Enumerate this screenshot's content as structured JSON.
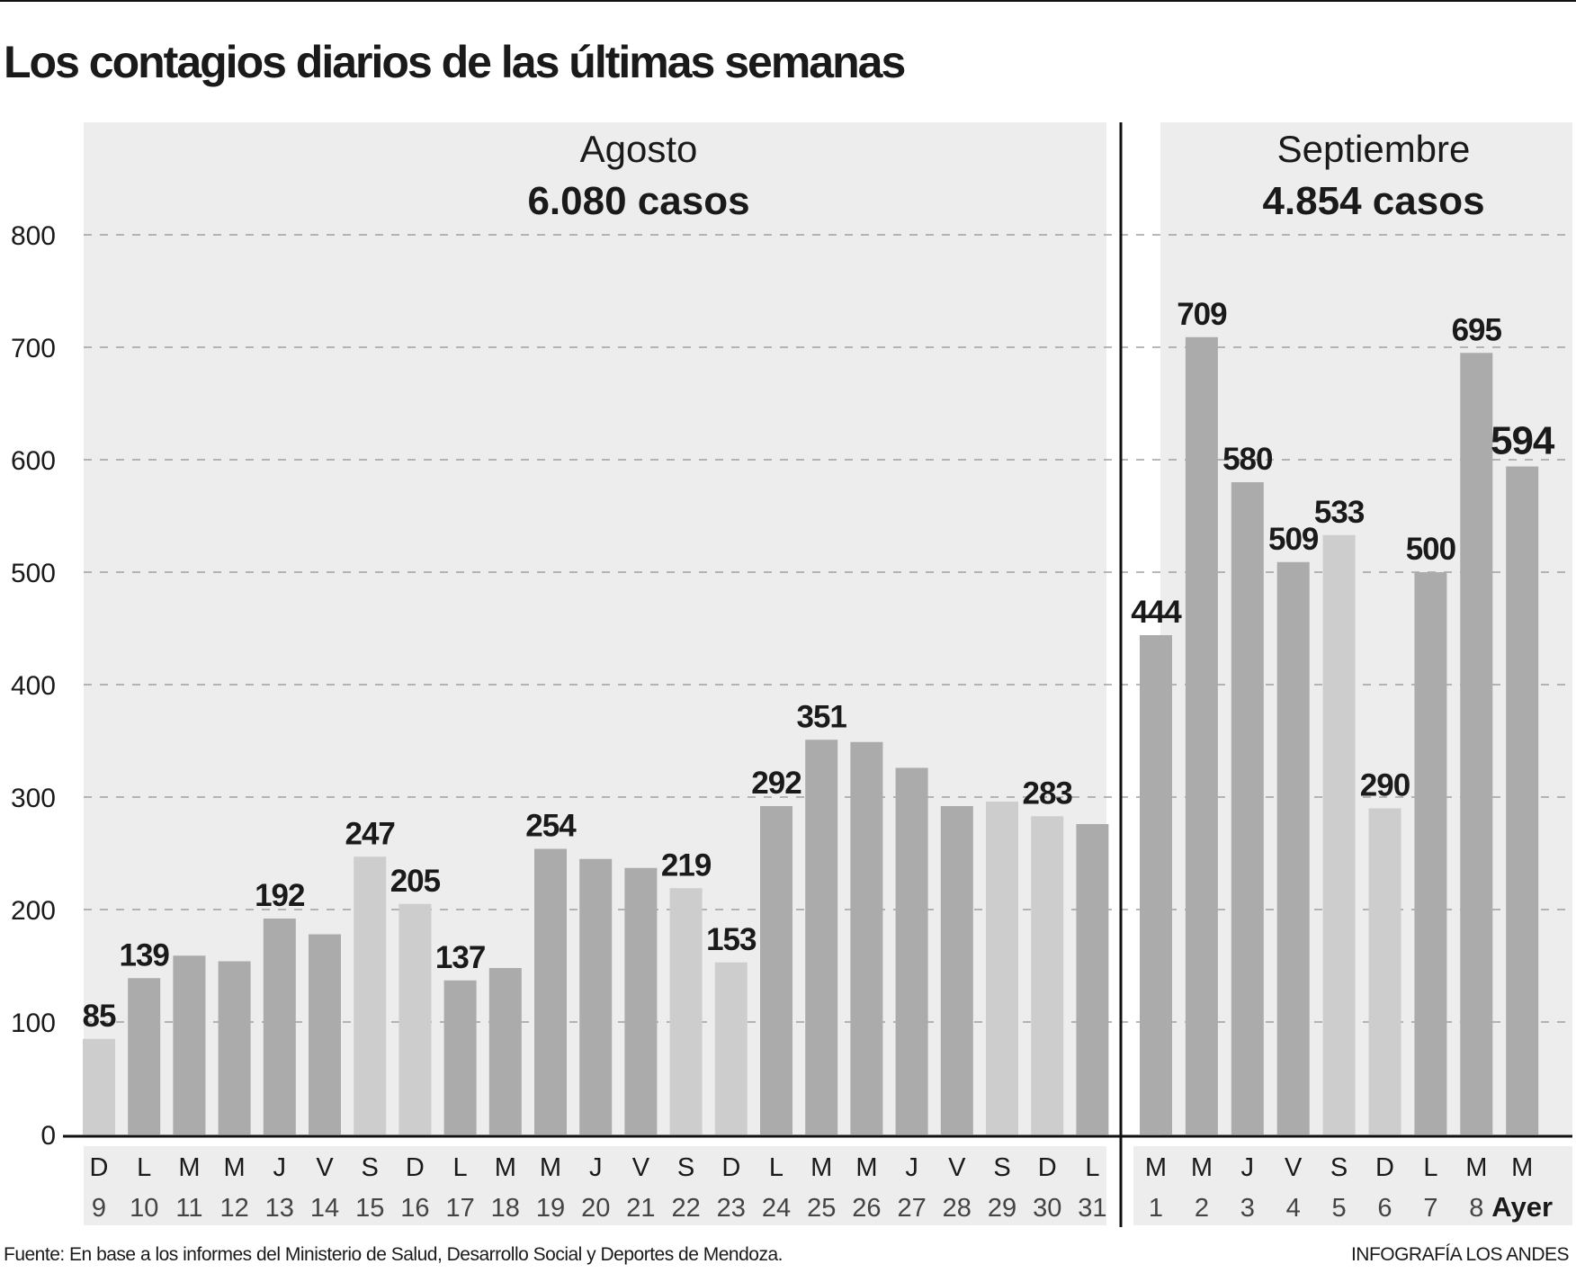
{
  "title": "Los contagios diarios de las últimas semanas",
  "source": "Fuente: En base a los informes del Ministerio de Salud, Desarrollo Social y Deportes de Mendoza.",
  "credit": "INFOGRAFÍA LOS ANDES",
  "colors": {
    "background_panel": "#ededed",
    "weekday_bar": "#ababab",
    "weekend_bar": "#cdcdcd",
    "text": "#1a1a1a",
    "gridline": "#a0a0a0"
  },
  "chart_data": {
    "type": "bar",
    "title": "Los contagios diarios de las últimas semanas",
    "xlabel": "",
    "ylabel": "",
    "ylim": [
      0,
      800
    ],
    "yticks": [
      "0",
      "100",
      "200",
      "300",
      "400",
      "500",
      "600",
      "700",
      "800"
    ],
    "grid": true,
    "panels": [
      {
        "month": "Agosto",
        "total": "6.080 casos",
        "bars": [
          {
            "day": "D",
            "date": "9",
            "value": 85,
            "label": "85",
            "weekend": true
          },
          {
            "day": "L",
            "date": "10",
            "value": 139,
            "label": "139",
            "weekend": false
          },
          {
            "day": "M",
            "date": "11",
            "value": 159,
            "label": null,
            "weekend": false
          },
          {
            "day": "M",
            "date": "12",
            "value": 154,
            "label": null,
            "weekend": false
          },
          {
            "day": "J",
            "date": "13",
            "value": 192,
            "label": "192",
            "weekend": false
          },
          {
            "day": "V",
            "date": "14",
            "value": 178,
            "label": null,
            "weekend": false
          },
          {
            "day": "S",
            "date": "15",
            "value": 247,
            "label": "247",
            "weekend": true
          },
          {
            "day": "D",
            "date": "16",
            "value": 205,
            "label": "205",
            "weekend": true
          },
          {
            "day": "L",
            "date": "17",
            "value": 137,
            "label": "137",
            "weekend": false
          },
          {
            "day": "M",
            "date": "18",
            "value": 148,
            "label": null,
            "weekend": false
          },
          {
            "day": "M",
            "date": "19",
            "value": 254,
            "label": "254",
            "weekend": false
          },
          {
            "day": "J",
            "date": "20",
            "value": 245,
            "label": null,
            "weekend": false
          },
          {
            "day": "V",
            "date": "21",
            "value": 237,
            "label": null,
            "weekend": false
          },
          {
            "day": "S",
            "date": "22",
            "value": 219,
            "label": "219",
            "weekend": true
          },
          {
            "day": "D",
            "date": "23",
            "value": 153,
            "label": "153",
            "weekend": true
          },
          {
            "day": "L",
            "date": "24",
            "value": 292,
            "label": "292",
            "weekend": false
          },
          {
            "day": "M",
            "date": "25",
            "value": 351,
            "label": "351",
            "weekend": false
          },
          {
            "day": "M",
            "date": "26",
            "value": 349,
            "label": null,
            "weekend": false
          },
          {
            "day": "J",
            "date": "27",
            "value": 326,
            "label": null,
            "weekend": false
          },
          {
            "day": "V",
            "date": "28",
            "value": 292,
            "label": null,
            "weekend": false
          },
          {
            "day": "S",
            "date": "29",
            "value": 296,
            "label": null,
            "weekend": true
          },
          {
            "day": "D",
            "date": "30",
            "value": 283,
            "label": "283",
            "weekend": true
          },
          {
            "day": "L",
            "date": "31",
            "value": 276,
            "label": null,
            "weekend": false
          }
        ]
      },
      {
        "month": "Septiembre",
        "total": "4.854 casos",
        "bars": [
          {
            "day": "M",
            "date": "1",
            "value": 444,
            "label": "444",
            "weekend": false
          },
          {
            "day": "M",
            "date": "2",
            "value": 709,
            "label": "709",
            "weekend": false
          },
          {
            "day": "J",
            "date": "3",
            "value": 580,
            "label": "580",
            "weekend": false
          },
          {
            "day": "V",
            "date": "4",
            "value": 509,
            "label": "509",
            "weekend": false
          },
          {
            "day": "S",
            "date": "5",
            "value": 533,
            "label": "533",
            "weekend": true
          },
          {
            "day": "D",
            "date": "6",
            "value": 290,
            "label": "290",
            "weekend": true
          },
          {
            "day": "L",
            "date": "7",
            "value": 500,
            "label": "500",
            "weekend": false
          },
          {
            "day": "M",
            "date": "8",
            "value": 695,
            "label": "695",
            "weekend": false
          },
          {
            "day": "M",
            "date": "Ayer",
            "value": 594,
            "label": "594",
            "weekend": false,
            "highlight": true
          }
        ]
      }
    ]
  }
}
